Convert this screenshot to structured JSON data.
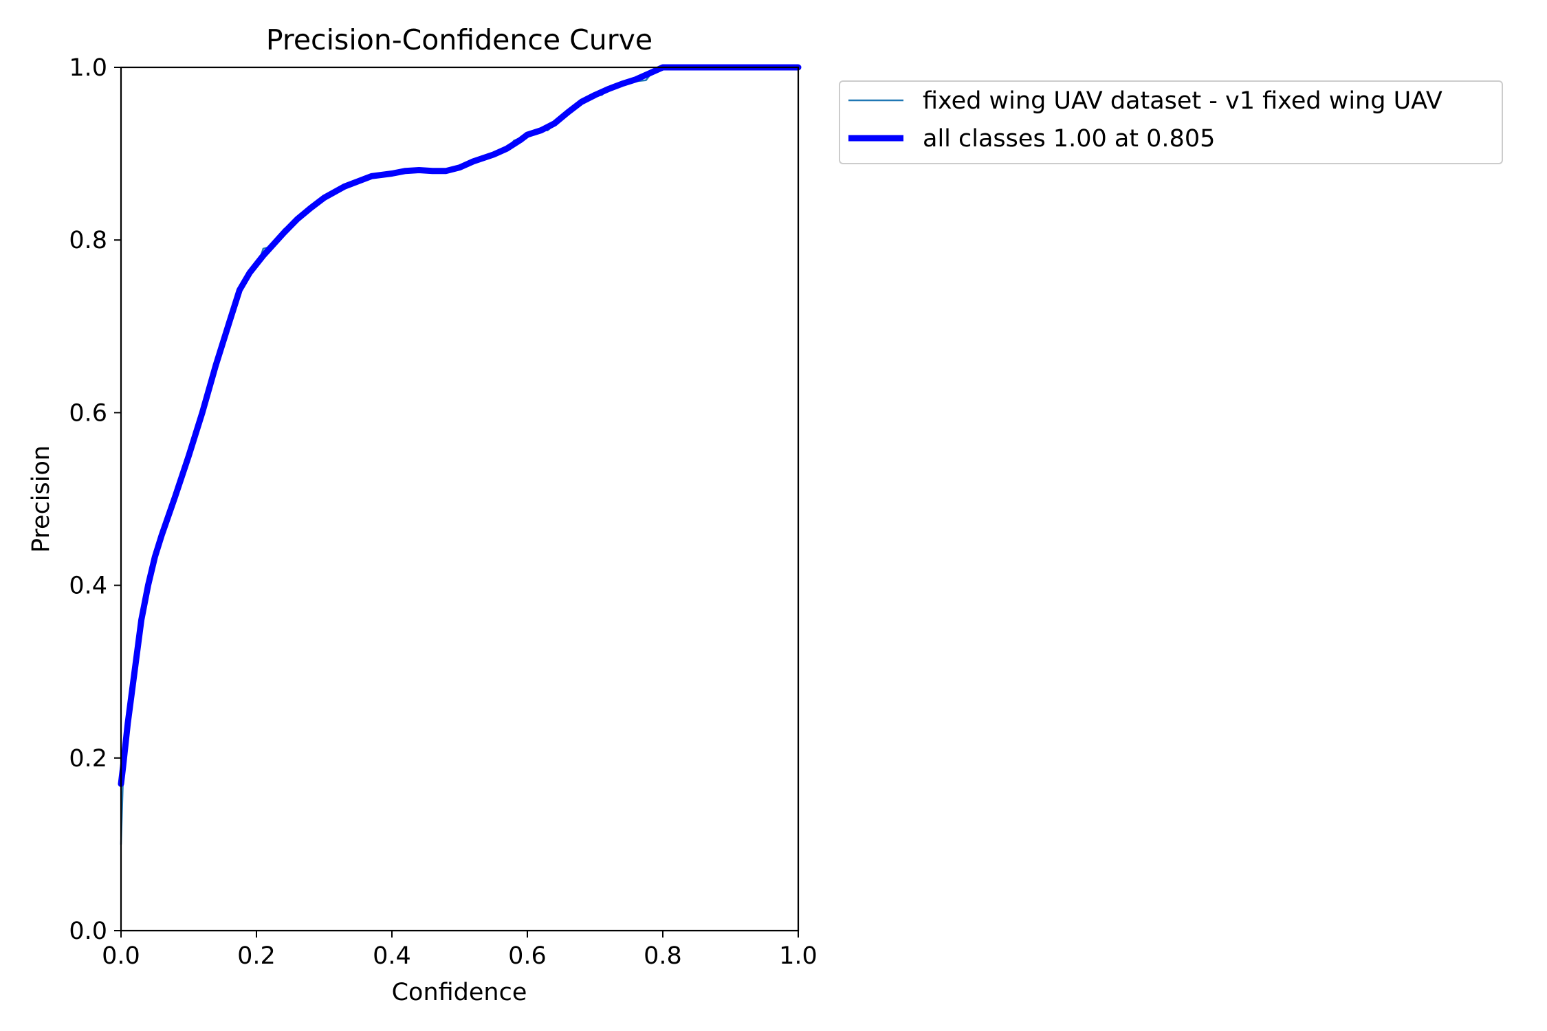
{
  "chart_data": {
    "type": "line",
    "title": "Precision-Confidence Curve",
    "xlabel": "Confidence",
    "ylabel": "Precision",
    "xlim": [
      0,
      1
    ],
    "ylim": [
      0,
      1
    ],
    "x_ticks": [
      "0.0",
      "0.2",
      "0.4",
      "0.6",
      "0.8",
      "1.0"
    ],
    "y_ticks": [
      "0.0",
      "0.2",
      "0.4",
      "0.6",
      "0.8",
      "1.0"
    ],
    "grid": false,
    "legend_placement": "outside-right-top",
    "series": [
      {
        "name": "fixed wing UAV dataset - v1 fixed wing UAV",
        "color": "#1f77b4",
        "points": [
          [
            0.0,
            0.1
          ],
          [
            0.003,
            0.18
          ],
          [
            0.01,
            0.23
          ],
          [
            0.02,
            0.3
          ],
          [
            0.03,
            0.36
          ],
          [
            0.04,
            0.4
          ],
          [
            0.05,
            0.435
          ],
          [
            0.06,
            0.46
          ],
          [
            0.08,
            0.505
          ],
          [
            0.1,
            0.55
          ],
          [
            0.12,
            0.6
          ],
          [
            0.14,
            0.655
          ],
          [
            0.16,
            0.705
          ],
          [
            0.175,
            0.74
          ],
          [
            0.19,
            0.763
          ],
          [
            0.205,
            0.778
          ],
          [
            0.21,
            0.79
          ],
          [
            0.22,
            0.792
          ],
          [
            0.23,
            0.8
          ],
          [
            0.24,
            0.812
          ],
          [
            0.26,
            0.825
          ],
          [
            0.28,
            0.838
          ],
          [
            0.3,
            0.85
          ],
          [
            0.33,
            0.862
          ],
          [
            0.35,
            0.87
          ],
          [
            0.37,
            0.875
          ],
          [
            0.4,
            0.878
          ],
          [
            0.42,
            0.88
          ],
          [
            0.44,
            0.881
          ],
          [
            0.46,
            0.88
          ],
          [
            0.48,
            0.881
          ],
          [
            0.5,
            0.885
          ],
          [
            0.52,
            0.892
          ],
          [
            0.55,
            0.9
          ],
          [
            0.57,
            0.905
          ],
          [
            0.58,
            0.915
          ],
          [
            0.6,
            0.922
          ],
          [
            0.62,
            0.928
          ],
          [
            0.63,
            0.927
          ],
          [
            0.65,
            0.94
          ],
          [
            0.67,
            0.955
          ],
          [
            0.69,
            0.965
          ],
          [
            0.71,
            0.968
          ],
          [
            0.715,
            0.972
          ],
          [
            0.73,
            0.98
          ],
          [
            0.75,
            0.983
          ],
          [
            0.775,
            0.985
          ],
          [
            0.78,
            0.99
          ],
          [
            0.8,
            1.0
          ],
          [
            1.0,
            1.0
          ]
        ]
      },
      {
        "name": "all classes 1.00 at 0.805",
        "color": "#0000ff",
        "points": [
          [
            0.0,
            0.17
          ],
          [
            0.003,
            0.19
          ],
          [
            0.01,
            0.24
          ],
          [
            0.02,
            0.3
          ],
          [
            0.03,
            0.36
          ],
          [
            0.04,
            0.4
          ],
          [
            0.05,
            0.433
          ],
          [
            0.06,
            0.458
          ],
          [
            0.08,
            0.503
          ],
          [
            0.1,
            0.55
          ],
          [
            0.12,
            0.6
          ],
          [
            0.14,
            0.655
          ],
          [
            0.16,
            0.705
          ],
          [
            0.175,
            0.742
          ],
          [
            0.19,
            0.762
          ],
          [
            0.21,
            0.782
          ],
          [
            0.24,
            0.808
          ],
          [
            0.26,
            0.824
          ],
          [
            0.28,
            0.837
          ],
          [
            0.3,
            0.849
          ],
          [
            0.33,
            0.862
          ],
          [
            0.35,
            0.868
          ],
          [
            0.37,
            0.874
          ],
          [
            0.4,
            0.877
          ],
          [
            0.42,
            0.88
          ],
          [
            0.44,
            0.881
          ],
          [
            0.46,
            0.88
          ],
          [
            0.48,
            0.88
          ],
          [
            0.5,
            0.884
          ],
          [
            0.52,
            0.891
          ],
          [
            0.55,
            0.899
          ],
          [
            0.57,
            0.906
          ],
          [
            0.59,
            0.916
          ],
          [
            0.6,
            0.922
          ],
          [
            0.62,
            0.927
          ],
          [
            0.64,
            0.935
          ],
          [
            0.66,
            0.948
          ],
          [
            0.68,
            0.96
          ],
          [
            0.7,
            0.968
          ],
          [
            0.72,
            0.975
          ],
          [
            0.74,
            0.981
          ],
          [
            0.76,
            0.986
          ],
          [
            0.78,
            0.993
          ],
          [
            0.8,
            1.0
          ],
          [
            0.805,
            1.0
          ],
          [
            1.0,
            1.0
          ]
        ]
      }
    ]
  }
}
